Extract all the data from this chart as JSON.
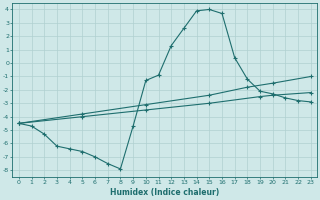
{
  "xlabel": "Humidex (Indice chaleur)",
  "xlim": [
    -0.5,
    23.5
  ],
  "ylim": [
    -8.5,
    4.5
  ],
  "xticks": [
    0,
    1,
    2,
    3,
    4,
    5,
    6,
    7,
    8,
    9,
    10,
    11,
    12,
    13,
    14,
    15,
    16,
    17,
    18,
    19,
    20,
    21,
    22,
    23
  ],
  "yticks": [
    -8,
    -7,
    -6,
    -5,
    -4,
    -3,
    -2,
    -1,
    0,
    1,
    2,
    3,
    4
  ],
  "bg_color": "#cfe8e8",
  "grid_color": "#b0d0d0",
  "line_color": "#1e6e6e",
  "line1_x": [
    0,
    1,
    2,
    3,
    4,
    5,
    6,
    7,
    8,
    9,
    10,
    11,
    12,
    13,
    14,
    15,
    16,
    17,
    18,
    19,
    20,
    21,
    22,
    23
  ],
  "line1_y": [
    -4.5,
    -4.7,
    -5.3,
    -6.2,
    -6.4,
    -6.6,
    -7.0,
    -7.5,
    -7.9,
    -4.7,
    -1.3,
    -0.9,
    1.3,
    2.6,
    3.9,
    4.0,
    3.7,
    0.4,
    -1.2,
    -2.1,
    -2.3,
    -2.6,
    -2.8,
    -2.9
  ],
  "line2_x": [
    0,
    5,
    10,
    15,
    18,
    20,
    23
  ],
  "line2_y": [
    -4.5,
    -3.8,
    -3.1,
    -2.4,
    -1.8,
    -1.5,
    -1.0
  ],
  "line3_x": [
    0,
    5,
    10,
    15,
    19,
    20,
    23
  ],
  "line3_y": [
    -4.5,
    -4.0,
    -3.5,
    -3.0,
    -2.5,
    -2.4,
    -2.2
  ]
}
